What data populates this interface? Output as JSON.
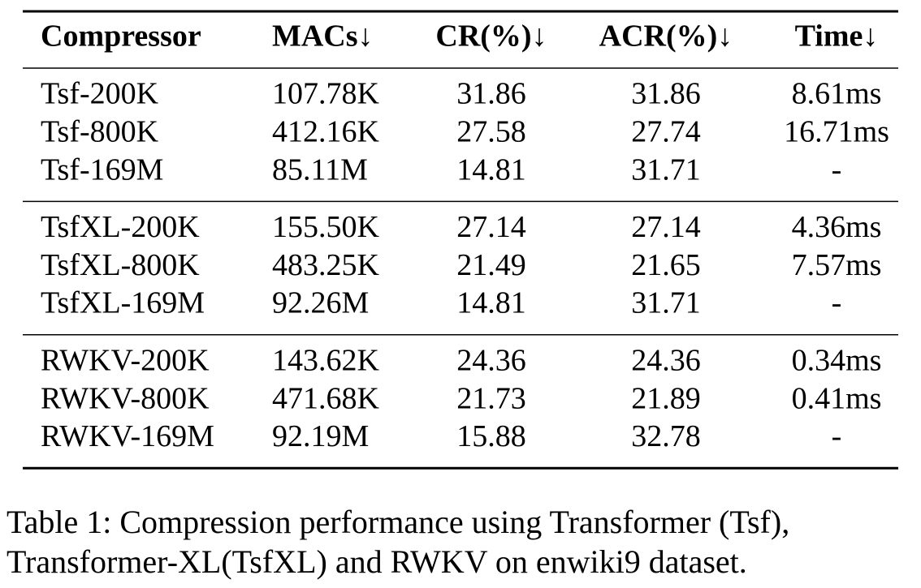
{
  "table": {
    "header": [
      "Compressor",
      "MACs↓",
      "CR(%)↓",
      "ACR(%)↓",
      "Time↓"
    ],
    "groups": [
      [
        [
          "Tsf-200K",
          "107.78K",
          "31.86",
          "31.86",
          "8.61ms"
        ],
        [
          "Tsf-800K",
          "412.16K",
          "27.58",
          "27.74",
          "16.71ms"
        ],
        [
          "Tsf-169M",
          "85.11M",
          "14.81",
          "31.71",
          "-"
        ]
      ],
      [
        [
          "TsfXL-200K",
          "155.50K",
          "27.14",
          "27.14",
          "4.36ms"
        ],
        [
          "TsfXL-800K",
          "483.25K",
          "21.49",
          "21.65",
          "7.57ms"
        ],
        [
          "TsfXL-169M",
          "92.26M",
          "14.81",
          "31.71",
          "-"
        ]
      ],
      [
        [
          "RWKV-200K",
          "143.62K",
          "24.36",
          "24.36",
          "0.34ms"
        ],
        [
          "RWKV-800K",
          "471.68K",
          "21.73",
          "21.89",
          "0.41ms"
        ],
        [
          "RWKV-169M",
          "92.19M",
          "15.88",
          "32.78",
          "-"
        ]
      ]
    ]
  },
  "caption": [
    "Table 1: Compression performance using Transformer (Tsf),",
    "Transformer-XL(TsfXL) and RWKV on enwiki9 dataset."
  ]
}
